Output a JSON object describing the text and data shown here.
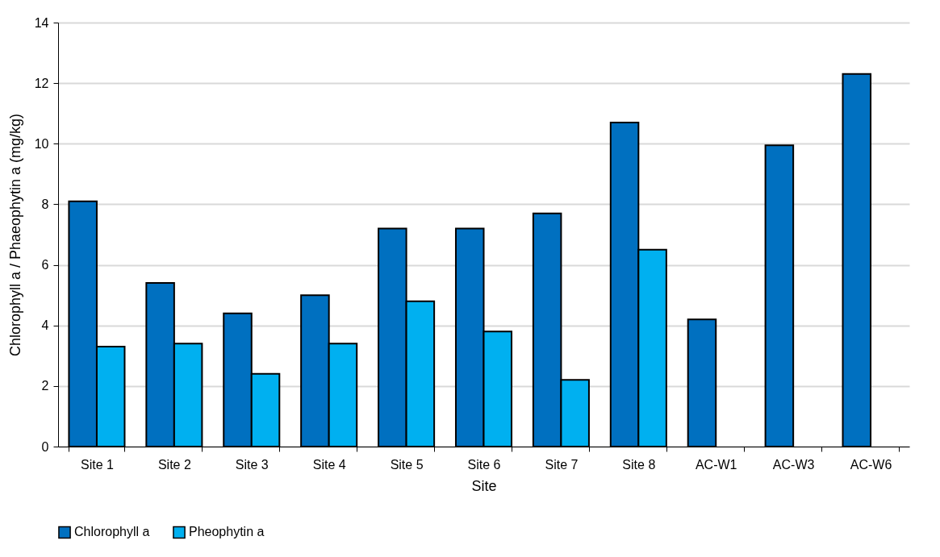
{
  "chart_data": {
    "type": "bar",
    "xlabel": "Site",
    "ylabel": "Chlorophyll a / Phaeophytin a (mg/kg)",
    "categories": [
      "Site 1",
      "Site 2",
      "Site 3",
      "Site 4",
      "Site 5",
      "Site 6",
      "Site 7",
      "Site 8",
      "AC-W1",
      "AC-W3",
      "AC-W6"
    ],
    "series": [
      {
        "name": "Chlorophyll a",
        "color": "#0070c0",
        "values": [
          8.1,
          5.4,
          4.4,
          5.0,
          7.2,
          7.2,
          7.7,
          10.7,
          4.2,
          9.95,
          12.3
        ]
      },
      {
        "name": "Pheophytin a",
        "color": "#00b0f0",
        "values": [
          3.3,
          3.4,
          2.4,
          3.4,
          4.8,
          3.8,
          2.2,
          6.5,
          null,
          null,
          null
        ]
      }
    ],
    "ylim": [
      0,
      14
    ],
    "yticks": [
      0,
      2,
      4,
      6,
      8,
      10,
      12,
      14
    ],
    "grid": "y",
    "legend": "bottom"
  }
}
